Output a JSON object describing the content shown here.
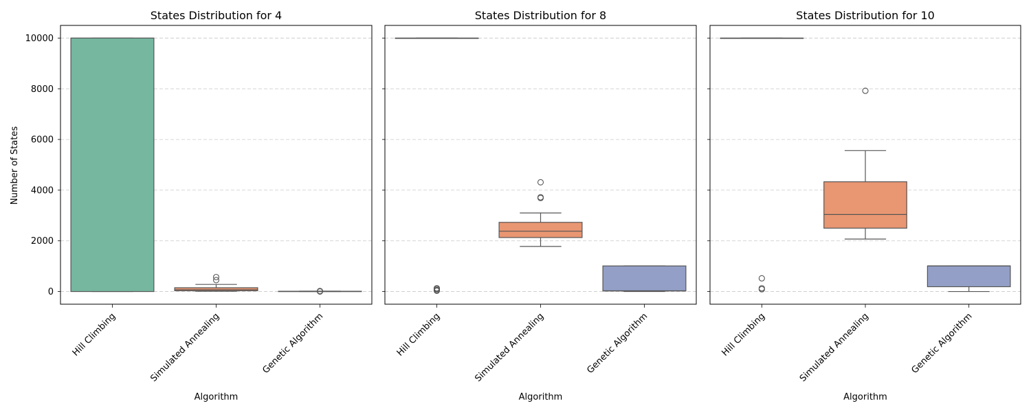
{
  "ylabel": "Number of States",
  "xlabel": "Algorithm",
  "colors": {
    "Hill Climbing": "#76b7a0",
    "Simulated Annealing": "#e99672",
    "Genetic Algorithm": "#939fc6",
    "grid": "#c8c8c8",
    "box_edge": "#555555"
  },
  "chart_data": [
    {
      "type": "box",
      "title": "States Distribution for 4",
      "xlabel": "Algorithm",
      "ylabel": "Number of States",
      "categories": [
        "Hill Climbing",
        "Simulated Annealing",
        "Genetic Algorithm"
      ],
      "ylim": [
        -500,
        10500
      ],
      "yticks": [
        0,
        2000,
        4000,
        6000,
        8000,
        10000
      ],
      "grid": "y-dashed",
      "boxes": [
        {
          "name": "Hill Climbing",
          "whislo": 0,
          "q1": 0,
          "med": 10000,
          "q3": 10000,
          "whishi": 10000,
          "fliers": []
        },
        {
          "name": "Simulated Annealing",
          "whislo": 10,
          "q1": 30,
          "med": 70,
          "q3": 150,
          "whishi": 280,
          "fliers": [
            450,
            570
          ]
        },
        {
          "name": "Genetic Algorithm",
          "whislo": 0,
          "q1": 0,
          "med": 5,
          "q3": 10,
          "whishi": 15,
          "fliers": [
            0,
            20
          ]
        }
      ]
    },
    {
      "type": "box",
      "title": "States Distribution for 8",
      "xlabel": "Algorithm",
      "categories": [
        "Hill Climbing",
        "Simulated Annealing",
        "Genetic Algorithm"
      ],
      "ylim": [
        -500,
        10500
      ],
      "yticks": [
        0,
        2000,
        4000,
        6000,
        8000,
        10000
      ],
      "grid": "y-dashed",
      "boxes": [
        {
          "name": "Hill Climbing",
          "whislo": 10000,
          "q1": 10000,
          "med": 10000,
          "q3": 10000,
          "whishi": 10000,
          "fliers": [
            30,
            60,
            100,
            130
          ]
        },
        {
          "name": "Simulated Annealing",
          "whislo": 1780,
          "q1": 2130,
          "med": 2380,
          "q3": 2730,
          "whishi": 3100,
          "fliers": [
            3690,
            3720,
            4310
          ]
        },
        {
          "name": "Genetic Algorithm",
          "whislo": 0,
          "q1": 20,
          "med": 30,
          "q3": 1010,
          "whishi": 1010,
          "fliers": []
        }
      ]
    },
    {
      "type": "box",
      "title": "States Distribution for 10",
      "xlabel": "Algorithm",
      "categories": [
        "Hill Climbing",
        "Simulated Annealing",
        "Genetic Algorithm"
      ],
      "ylim": [
        -500,
        10500
      ],
      "yticks": [
        0,
        2000,
        4000,
        6000,
        8000,
        10000
      ],
      "grid": "y-dashed",
      "boxes": [
        {
          "name": "Hill Climbing",
          "whislo": 10000,
          "q1": 10000,
          "med": 10000,
          "q3": 10000,
          "whishi": 10000,
          "fliers": [
            90,
            130,
            520
          ]
        },
        {
          "name": "Simulated Annealing",
          "whislo": 2070,
          "q1": 2500,
          "med": 3040,
          "q3": 4330,
          "whishi": 5560,
          "fliers": [
            7920
          ]
        },
        {
          "name": "Genetic Algorithm",
          "whislo": 0,
          "q1": 190,
          "med": 1010,
          "q3": 1010,
          "whishi": 1010,
          "fliers": []
        }
      ]
    }
  ]
}
